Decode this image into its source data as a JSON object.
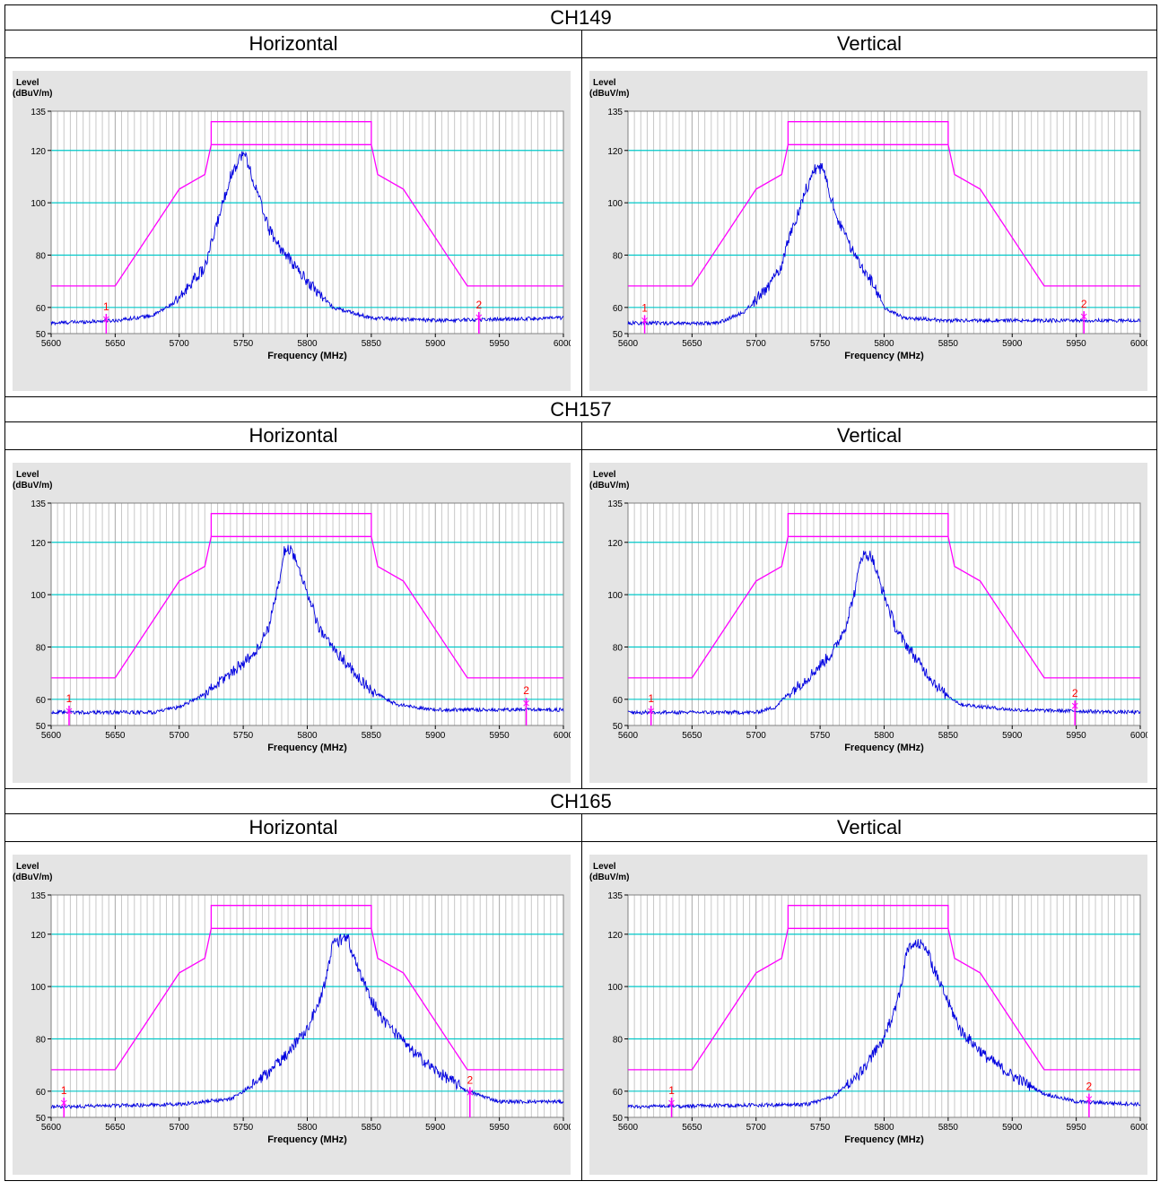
{
  "table": {
    "rows": [
      {
        "channel": "CH149",
        "horizontal_label": "Horizontal",
        "vertical_label": "Vertical"
      },
      {
        "channel": "CH157",
        "horizontal_label": "Horizontal",
        "vertical_label": "Vertical"
      },
      {
        "channel": "CH165",
        "horizontal_label": "Horizontal",
        "vertical_label": "Vertical"
      }
    ]
  },
  "colors": {
    "background": "#e4e4e4",
    "plot_area": "#ffffff",
    "gridline_level": "#00c8c8",
    "gridline_freq": "#c8c8c8",
    "limit_line": "#ff00ff",
    "trace": "#0000e0",
    "marker_label": "#ff0000"
  },
  "chart_data": [
    {
      "type": "line",
      "panel": "CH149 Horizontal",
      "ylabel": "Level",
      "yunit": "(dBuV/m)",
      "xlabel": "Frequency (MHz)",
      "xlim": [
        5600,
        6000
      ],
      "ylim": [
        50,
        135
      ],
      "yticks": [
        50,
        60,
        80,
        100,
        120,
        135
      ],
      "xticks": [
        5600,
        5650,
        5700,
        5750,
        5800,
        5850,
        5900,
        5950,
        6000
      ],
      "limit": {
        "x": [
          5600,
          5650,
          5700,
          5720,
          5725,
          5850,
          5855,
          5875,
          5925,
          6000
        ],
        "y": [
          68.2,
          68.2,
          105.2,
          110.8,
          122.2,
          122.2,
          110.8,
          105.2,
          68.2,
          68.2
        ],
        "plateau": 131
      },
      "peak": {
        "x": [
          5600,
          5650,
          5680,
          5700,
          5710,
          5720,
          5725,
          5730,
          5740,
          5748,
          5752,
          5758,
          5765,
          5770,
          5780,
          5800,
          5820,
          5850,
          5900,
          6000
        ],
        "y": [
          54,
          55,
          57,
          63,
          70,
          75,
          84,
          93,
          110,
          118,
          118,
          108,
          98,
          90,
          82,
          70,
          60,
          56,
          55,
          56
        ]
      },
      "markers": [
        {
          "label": "1",
          "x": 5643,
          "y": 55.5
        },
        {
          "label": "2",
          "x": 5934,
          "y": 56.2
        }
      ]
    },
    {
      "type": "line",
      "panel": "CH149 Vertical",
      "ylabel": "Level",
      "yunit": "(dBuV/m)",
      "xlabel": "Frequency (MHz)",
      "xlim": [
        5600,
        6000
      ],
      "ylim": [
        50,
        135
      ],
      "yticks": [
        50,
        60,
        80,
        100,
        120,
        135
      ],
      "xticks": [
        5600,
        5650,
        5700,
        5750,
        5800,
        5850,
        5900,
        5950,
        6000
      ],
      "limit": {
        "x": [
          5600,
          5650,
          5700,
          5720,
          5725,
          5850,
          5855,
          5875,
          5925,
          6000
        ],
        "y": [
          68.2,
          68.2,
          105.2,
          110.8,
          122.2,
          122.2,
          110.8,
          105.2,
          68.2,
          68.2
        ],
        "plateau": 131
      },
      "peak": {
        "x": [
          5600,
          5670,
          5690,
          5700,
          5710,
          5720,
          5725,
          5730,
          5738,
          5746,
          5752,
          5758,
          5765,
          5775,
          5790,
          5800,
          5815,
          5850,
          5900,
          6000
        ],
        "y": [
          54,
          54,
          58,
          63,
          68,
          76,
          86,
          92,
          104,
          113,
          113,
          103,
          92,
          82,
          70,
          60,
          56,
          55,
          55,
          55
        ]
      },
      "markers": [
        {
          "label": "1",
          "x": 5613,
          "y": 55
        },
        {
          "label": "2",
          "x": 5956,
          "y": 56.5
        }
      ]
    },
    {
      "type": "line",
      "panel": "CH157 Horizontal",
      "ylabel": "Level",
      "yunit": "(dBuV/m)",
      "xlabel": "Frequency (MHz)",
      "xlim": [
        5600,
        6000
      ],
      "ylim": [
        50,
        135
      ],
      "yticks": [
        50,
        60,
        80,
        100,
        120,
        135
      ],
      "xticks": [
        5600,
        5650,
        5700,
        5750,
        5800,
        5850,
        5900,
        5950,
        6000
      ],
      "limit": {
        "x": [
          5600,
          5650,
          5700,
          5720,
          5725,
          5850,
          5855,
          5875,
          5925,
          6000
        ],
        "y": [
          68.2,
          68.2,
          105.2,
          110.8,
          122.2,
          122.2,
          110.8,
          105.2,
          68.2,
          68.2
        ],
        "plateau": 131
      },
      "peak": {
        "x": [
          5600,
          5680,
          5700,
          5720,
          5740,
          5760,
          5770,
          5778,
          5782,
          5788,
          5795,
          5802,
          5810,
          5830,
          5850,
          5870,
          5900,
          6000
        ],
        "y": [
          55,
          55,
          57,
          62,
          70,
          78,
          88,
          104,
          117,
          117,
          108,
          98,
          86,
          74,
          63,
          58,
          56,
          56
        ]
      },
      "markers": [
        {
          "label": "1",
          "x": 5614,
          "y": 55.5
        },
        {
          "label": "2",
          "x": 5971,
          "y": 58.5
        }
      ]
    },
    {
      "type": "line",
      "panel": "CH157 Vertical",
      "ylabel": "Level",
      "yunit": "(dBuV/m)",
      "xlabel": "Frequency (MHz)",
      "xlim": [
        5600,
        6000
      ],
      "ylim": [
        50,
        135
      ],
      "yticks": [
        50,
        60,
        80,
        100,
        120,
        135
      ],
      "xticks": [
        5600,
        5650,
        5700,
        5750,
        5800,
        5850,
        5900,
        5950,
        6000
      ],
      "limit": {
        "x": [
          5600,
          5650,
          5700,
          5720,
          5725,
          5850,
          5855,
          5875,
          5925,
          6000
        ],
        "y": [
          68.2,
          68.2,
          105.2,
          110.8,
          122.2,
          122.2,
          110.8,
          105.2,
          68.2,
          68.2
        ],
        "plateau": 131
      },
      "peak": {
        "x": [
          5600,
          5700,
          5715,
          5725,
          5740,
          5760,
          5770,
          5778,
          5782,
          5790,
          5795,
          5802,
          5810,
          5830,
          5845,
          5860,
          5900,
          6000
        ],
        "y": [
          55,
          55,
          57,
          62,
          68,
          78,
          88,
          103,
          115,
          115,
          107,
          97,
          86,
          72,
          63,
          58,
          56,
          55
        ]
      },
      "markers": [
        {
          "label": "1",
          "x": 5618,
          "y": 55.5
        },
        {
          "label": "2",
          "x": 5949,
          "y": 57.5
        }
      ]
    },
    {
      "type": "line",
      "panel": "CH165 Horizontal",
      "ylabel": "Level",
      "yunit": "(dBuV/m)",
      "xlabel": "Frequency (MHz)",
      "xlim": [
        5600,
        6000
      ],
      "ylim": [
        50,
        135
      ],
      "yticks": [
        50,
        60,
        80,
        100,
        120,
        135
      ],
      "xticks": [
        5600,
        5650,
        5700,
        5750,
        5800,
        5850,
        5900,
        5950,
        6000
      ],
      "limit": {
        "x": [
          5600,
          5650,
          5700,
          5720,
          5725,
          5850,
          5855,
          5875,
          5925,
          6000
        ],
        "y": [
          68.2,
          68.2,
          105.2,
          110.8,
          122.2,
          122.2,
          110.8,
          105.2,
          68.2,
          68.2
        ],
        "plateau": 131
      },
      "peak": {
        "x": [
          5600,
          5700,
          5740,
          5760,
          5780,
          5800,
          5812,
          5820,
          5826,
          5832,
          5840,
          5850,
          5860,
          5880,
          5900,
          5925,
          5950,
          6000
        ],
        "y": [
          54,
          55,
          57,
          63,
          72,
          84,
          98,
          116,
          118,
          118,
          106,
          95,
          87,
          76,
          68,
          60,
          56,
          56
        ]
      },
      "markers": [
        {
          "label": "1",
          "x": 5610,
          "y": 55.5
        },
        {
          "label": "2",
          "x": 5927,
          "y": 59.5
        }
      ]
    },
    {
      "type": "line",
      "panel": "CH165 Vertical",
      "ylabel": "Level",
      "yunit": "(dBuV/m)",
      "xlabel": "Frequency (MHz)",
      "xlim": [
        5600,
        6000
      ],
      "ylim": [
        50,
        135
      ],
      "yticks": [
        50,
        60,
        80,
        100,
        120,
        135
      ],
      "xticks": [
        5600,
        5650,
        5700,
        5750,
        5800,
        5850,
        5900,
        5950,
        6000
      ],
      "limit": {
        "x": [
          5600,
          5650,
          5700,
          5720,
          5725,
          5850,
          5855,
          5875,
          5925,
          6000
        ],
        "y": [
          68.2,
          68.2,
          105.2,
          110.8,
          122.2,
          122.2,
          110.8,
          105.2,
          68.2,
          68.2
        ],
        "plateau": 131
      },
      "peak": {
        "x": [
          5600,
          5740,
          5760,
          5780,
          5800,
          5812,
          5818,
          5824,
          5832,
          5840,
          5850,
          5860,
          5880,
          5900,
          5925,
          5950,
          6000
        ],
        "y": [
          54,
          55,
          58,
          66,
          80,
          97,
          114,
          116,
          116,
          105,
          94,
          83,
          73,
          66,
          59,
          56,
          55
        ]
      },
      "markers": [
        {
          "label": "1",
          "x": 5634,
          "y": 55.5
        },
        {
          "label": "2",
          "x": 5960,
          "y": 57
        }
      ]
    }
  ]
}
